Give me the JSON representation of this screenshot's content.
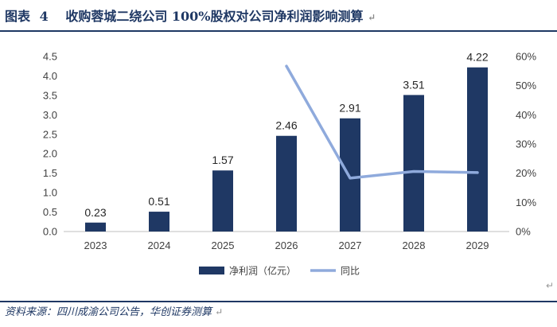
{
  "header": {
    "label": "图表",
    "number": "4",
    "title": "收购蓉城二绕公司 100%股权对公司净利润影响测算",
    "para_mark": "↵"
  },
  "footer": {
    "source": "资料来源：四川成渝公司公告，华创证券测算",
    "para_mark": "↵",
    "corner_mark": "↵"
  },
  "colors": {
    "bar": "#1f3864",
    "line": "#8faadc",
    "accent": "#1f3864"
  },
  "chart_data": {
    "type": "bar",
    "categories": [
      "2023",
      "2024",
      "2025",
      "2026",
      "2027",
      "2028",
      "2029"
    ],
    "series": [
      {
        "name": "净利润（亿元）",
        "type": "bar",
        "axis": "left",
        "values": [
          0.23,
          0.51,
          1.57,
          2.46,
          2.91,
          3.51,
          4.22
        ],
        "labels": [
          "0.23",
          "0.51",
          "1.57",
          "2.46",
          "2.91",
          "3.51",
          "4.22"
        ]
      },
      {
        "name": "同比",
        "type": "line",
        "axis": "right",
        "values": [
          null,
          null,
          null,
          56.7,
          18.3,
          20.6,
          20.2
        ]
      }
    ],
    "left_axis": {
      "min": 0,
      "max": 4.5,
      "step": 0.5,
      "ticks": [
        "0.0",
        "0.5",
        "1.0",
        "1.5",
        "2.0",
        "2.5",
        "3.0",
        "3.5",
        "4.0",
        "4.5"
      ]
    },
    "right_axis": {
      "min": 0,
      "max": 60,
      "step": 10,
      "ticks": [
        "0%",
        "10%",
        "20%",
        "30%",
        "40%",
        "50%",
        "60%"
      ]
    },
    "legend": {
      "placement": "bottom-center",
      "items": [
        "净利润（亿元）",
        "同比"
      ]
    },
    "grid": false
  }
}
